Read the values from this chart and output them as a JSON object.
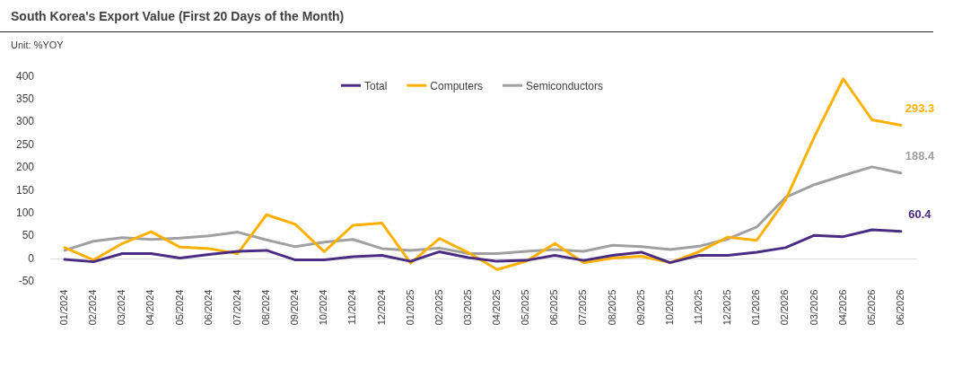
{
  "chart_data": {
    "type": "line",
    "title": "South Korea's Export Value (First 20 Days of the Month)",
    "subtitle": "Unit: %YOY",
    "categories": [
      "01/2024",
      "02/2024",
      "03/2024",
      "04/2024",
      "05/2024",
      "06/2024",
      "07/2024",
      "08/2024",
      "09/2024",
      "10/2024",
      "11/2024",
      "12/2024",
      "01/2025",
      "02/2025",
      "03/2025",
      "04/2025",
      "05/2025",
      "06/2025",
      "07/2025",
      "08/2025",
      "09/2025",
      "10/2025",
      "11/2025",
      "12/2025",
      "01/2026",
      "02/2026",
      "03/2026",
      "04/2026",
      "05/2026",
      "06/2026"
    ],
    "series": [
      {
        "name": "Total",
        "color": "#4b2c83",
        "values": [
          -1,
          -6,
          12,
          12,
          2,
          10,
          17,
          19,
          -2,
          -2,
          5,
          8,
          -5,
          16,
          3,
          -5,
          -3,
          8,
          -3,
          8,
          15,
          -8,
          8,
          8,
          15,
          25,
          52,
          49,
          64,
          60.4
        ],
        "value_labels": [
          null,
          null,
          null,
          null,
          null,
          null,
          null,
          null,
          null,
          null,
          null,
          null,
          null,
          null,
          null,
          null,
          null,
          null,
          null,
          null,
          null,
          null,
          null,
          null,
          null,
          null,
          null,
          null,
          null,
          "60.4"
        ]
      },
      {
        "name": "Computers",
        "color": "#ffb000",
        "values": [
          25,
          -2,
          34,
          60,
          26,
          23,
          12,
          97,
          76,
          16,
          74,
          79,
          -9,
          45,
          14,
          -23,
          -5,
          34,
          -8,
          2,
          6,
          -8,
          16,
          48,
          41,
          129,
          268,
          395,
          305,
          293.3
        ],
        "value_labels": [
          null,
          null,
          null,
          null,
          null,
          null,
          null,
          null,
          null,
          null,
          null,
          null,
          null,
          null,
          null,
          null,
          null,
          null,
          null,
          null,
          null,
          null,
          null,
          null,
          null,
          null,
          null,
          null,
          null,
          "293.3"
        ]
      },
      {
        "name": "Semiconductors",
        "color": "#a0a0a0",
        "values": [
          19,
          39,
          47,
          43,
          46,
          51,
          59,
          42,
          27,
          37,
          43,
          23,
          19,
          24,
          12,
          12,
          17,
          21,
          17,
          30,
          27,
          21,
          28,
          44,
          70,
          135,
          163,
          183,
          202,
          188.4
        ],
        "value_labels": [
          null,
          null,
          null,
          null,
          null,
          null,
          null,
          null,
          null,
          null,
          null,
          null,
          null,
          null,
          null,
          null,
          null,
          null,
          null,
          null,
          null,
          null,
          null,
          null,
          null,
          null,
          null,
          null,
          null,
          "188.4"
        ]
      }
    ],
    "ylim": [
      -50,
      400
    ],
    "yticks": [
      -50,
      0,
      50,
      100,
      150,
      200,
      250,
      300,
      350,
      400
    ],
    "legend": "top",
    "marker": "none"
  }
}
